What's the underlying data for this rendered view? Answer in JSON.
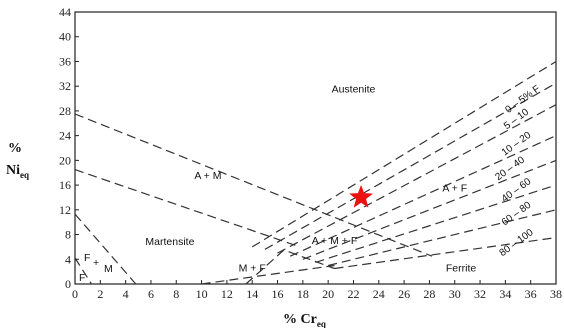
{
  "chart_data": {
    "type": "line",
    "title": "",
    "xlabel": {
      "main": "% Cr",
      "sub": "eq"
    },
    "ylabel": {
      "main": "%",
      "line2": "Ni",
      "sub": "eq"
    },
    "xlim": [
      0,
      38
    ],
    "ylim": [
      0,
      44
    ],
    "xticks": [
      0,
      2,
      4,
      6,
      8,
      10,
      12,
      14,
      16,
      18,
      20,
      22,
      24,
      26,
      28,
      30,
      32,
      34,
      36,
      38
    ],
    "yticks": [
      0,
      4,
      8,
      12,
      16,
      20,
      24,
      28,
      32,
      36,
      40,
      44
    ],
    "boundaries": [
      {
        "name": "austenite-upper",
        "points": [
          [
            0,
            27.5
          ],
          [
            28.2,
            4.5
          ]
        ]
      },
      {
        "name": "a-plus-m-lower",
        "points": [
          [
            0,
            18.5
          ],
          [
            17.5,
            6.2
          ]
        ]
      },
      {
        "name": "martensite-upper",
        "points": [
          [
            0,
            11.3
          ],
          [
            4.8,
            0
          ]
        ]
      },
      {
        "name": "f-plus-m",
        "points": [
          [
            0,
            4.2
          ],
          [
            1.3,
            0
          ]
        ]
      },
      {
        "name": "ferrite-left",
        "points": [
          [
            10,
            0
          ],
          [
            20.5,
            3
          ]
        ]
      },
      {
        "name": "am-right",
        "points": [
          [
            13.5,
            0
          ],
          [
            16.5,
            5.5
          ],
          [
            20.5,
            2.5
          ]
        ]
      },
      {
        "name": "fan-0",
        "points": [
          [
            14,
            6
          ],
          [
            38,
            36
          ]
        ]
      },
      {
        "name": "fan-1",
        "points": [
          [
            15,
            5.6
          ],
          [
            38,
            32.5
          ]
        ]
      },
      {
        "name": "fan-2",
        "points": [
          [
            16,
            5.0
          ],
          [
            38,
            29
          ]
        ]
      },
      {
        "name": "fan-3",
        "points": [
          [
            17,
            4.5
          ],
          [
            38,
            24
          ]
        ]
      },
      {
        "name": "fan-4",
        "points": [
          [
            18,
            4.0
          ],
          [
            38,
            20
          ]
        ]
      },
      {
        "name": "fan-5",
        "points": [
          [
            19,
            3.5
          ],
          [
            38,
            16
          ]
        ]
      },
      {
        "name": "fan-6",
        "points": [
          [
            20,
            3.0
          ],
          [
            38,
            12
          ]
        ]
      },
      {
        "name": "fan-7",
        "points": [
          [
            20.5,
            2.5
          ],
          [
            38,
            7.5
          ]
        ]
      }
    ],
    "regions": [
      {
        "label": "Austenite",
        "x": 22,
        "y": 31
      },
      {
        "label": "A + M",
        "x": 10.5,
        "y": 17
      },
      {
        "label": "Martensite",
        "x": 7.5,
        "y": 6.3
      },
      {
        "label": "A + M + F",
        "x": 20.5,
        "y": 6.5
      },
      {
        "label": "M + F",
        "x": 14,
        "y": 2
      },
      {
        "label": "A + F",
        "x": 30,
        "y": 15
      },
      {
        "label": "Ferrite",
        "x": 30.5,
        "y": 2
      }
    ],
    "fm_labels": {
      "f1": "F",
      "plus": "+",
      "m": "M",
      "f2": "F"
    },
    "ferrite_labels": [
      "0 – 5% F",
      "5 – 10",
      "10 – 20",
      "20 – 40",
      "40 – 60",
      "60 – 80",
      "80 – 100"
    ],
    "marker": {
      "shape": "star",
      "color": "#ee1111",
      "x": 22.6,
      "y": 14
    }
  }
}
